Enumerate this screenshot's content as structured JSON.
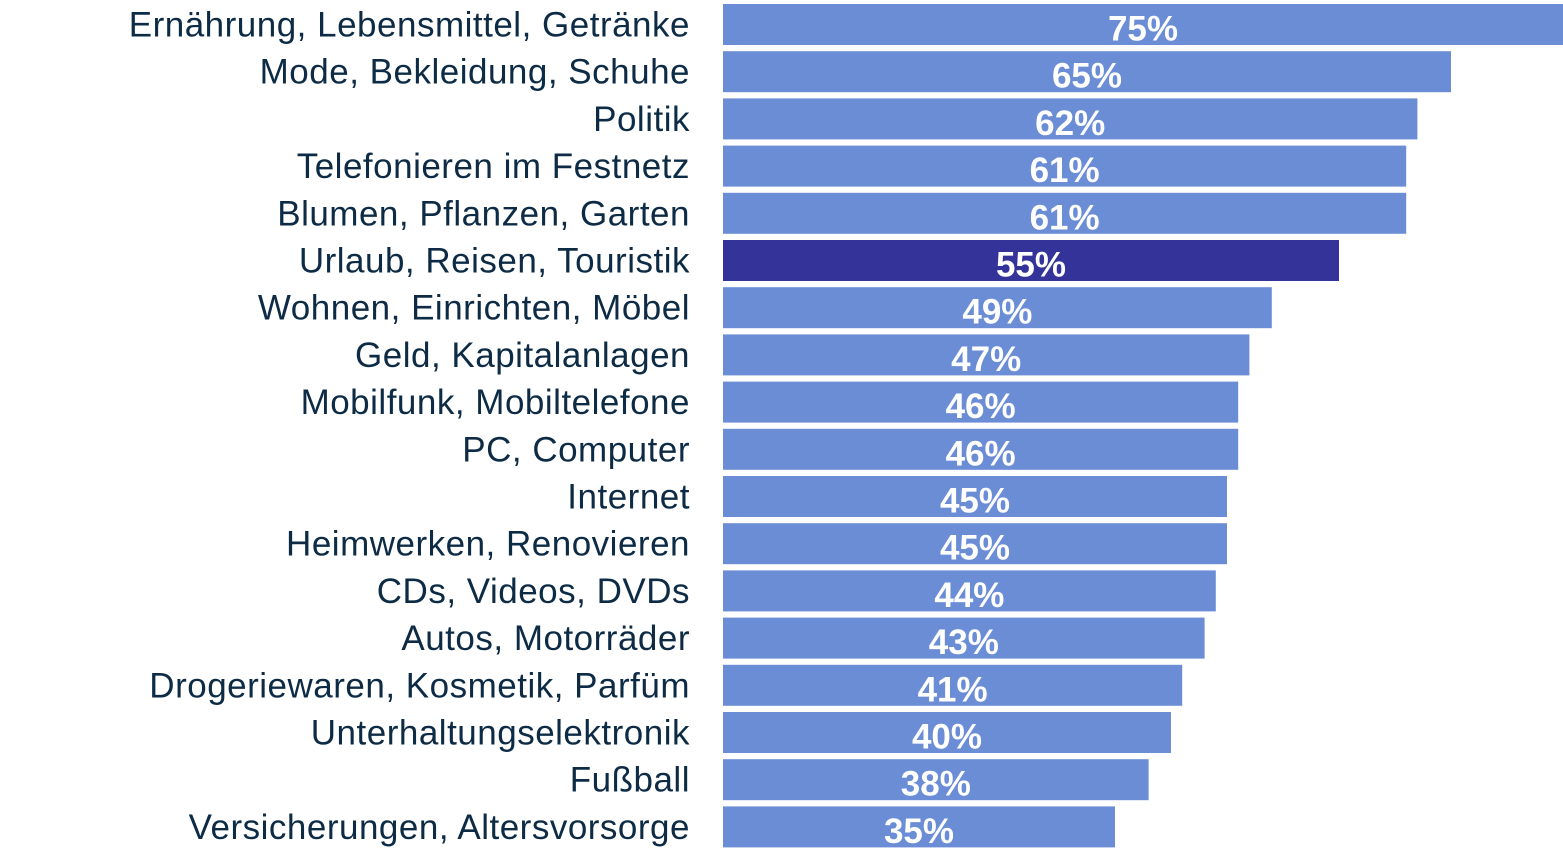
{
  "chart_data": {
    "type": "barh",
    "categories": [
      "Ernährung, Lebensmittel, Getränke",
      "Mode, Bekleidung, Schuhe",
      "Politik",
      "Telefonieren im Festnetz",
      "Blumen, Pflanzen, Garten",
      "Urlaub, Reisen, Touristik",
      "Wohnen, Einrichten, Möbel",
      "Geld, Kapitalanlagen",
      "Mobilfunk, Mobiltelefone",
      "PC, Computer",
      "Internet",
      "Heimwerken, Renovieren",
      "CDs, Videos, DVDs",
      "Autos, Motorräder",
      "Drogeriewaren, Kosmetik, Parfüm",
      "Unterhaltungselektronik",
      "Fußball",
      "Versicherungen, Altersvorsorge"
    ],
    "values": [
      75,
      65,
      62,
      61,
      61,
      55,
      49,
      47,
      46,
      46,
      45,
      45,
      44,
      43,
      41,
      40,
      38,
      35
    ],
    "value_labels": [
      "75%",
      "65%",
      "62%",
      "61%",
      "61%",
      "55%",
      "49%",
      "47%",
      "46%",
      "46%",
      "45%",
      "45%",
      "44%",
      "43%",
      "41%",
      "40%",
      "38%",
      "35%"
    ],
    "colors": [
      "#6b8dd6",
      "#6b8dd6",
      "#6b8dd6",
      "#6b8dd6",
      "#6b8dd6",
      "#333399",
      "#6b8dd6",
      "#6b8dd6",
      "#6b8dd6",
      "#6b8dd6",
      "#6b8dd6",
      "#6b8dd6",
      "#6b8dd6",
      "#6b8dd6",
      "#6b8dd6",
      "#6b8dd6",
      "#6b8dd6",
      "#6b8dd6"
    ],
    "xlim": [
      0,
      75
    ]
  }
}
